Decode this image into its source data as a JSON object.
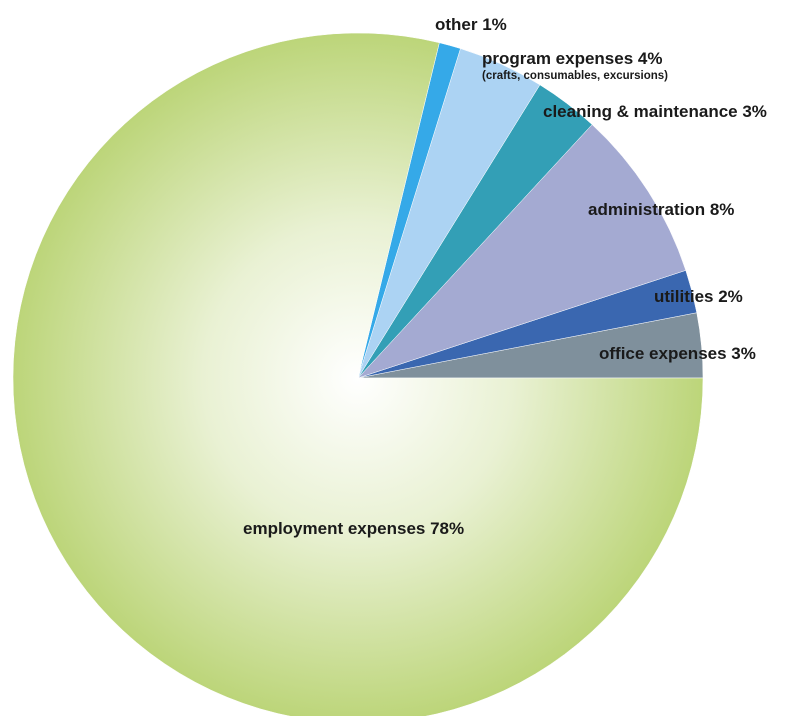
{
  "chart_data": {
    "type": "pie",
    "start_angle_deg": 0,
    "direction": "counterclockwise",
    "slices": [
      {
        "name": "office expenses",
        "value": 3,
        "label": "office expenses 3%",
        "color": "#7f909c"
      },
      {
        "name": "utilities",
        "value": 2,
        "label": "utilities 2%",
        "color": "#3a67b0"
      },
      {
        "name": "administration",
        "value": 8,
        "label": "administration 8%",
        "color": "#a4aad2"
      },
      {
        "name": "cleaning & maintenance",
        "value": 3,
        "label": "cleaning & maintenance 3%",
        "color": "#339fb6"
      },
      {
        "name": "program expenses",
        "value": 4,
        "label": "program expenses 4%",
        "sublabel": "(crafts, consumables, excursions)",
        "color": "#acd3f3"
      },
      {
        "name": "other",
        "value": 1,
        "label": "other 1%",
        "color": "#35a9e8"
      },
      {
        "name": "employment expenses",
        "value": 78,
        "label": "employment expenses 78%",
        "color": "#bcd579",
        "gradient_center": "#ffffff"
      }
    ]
  }
}
